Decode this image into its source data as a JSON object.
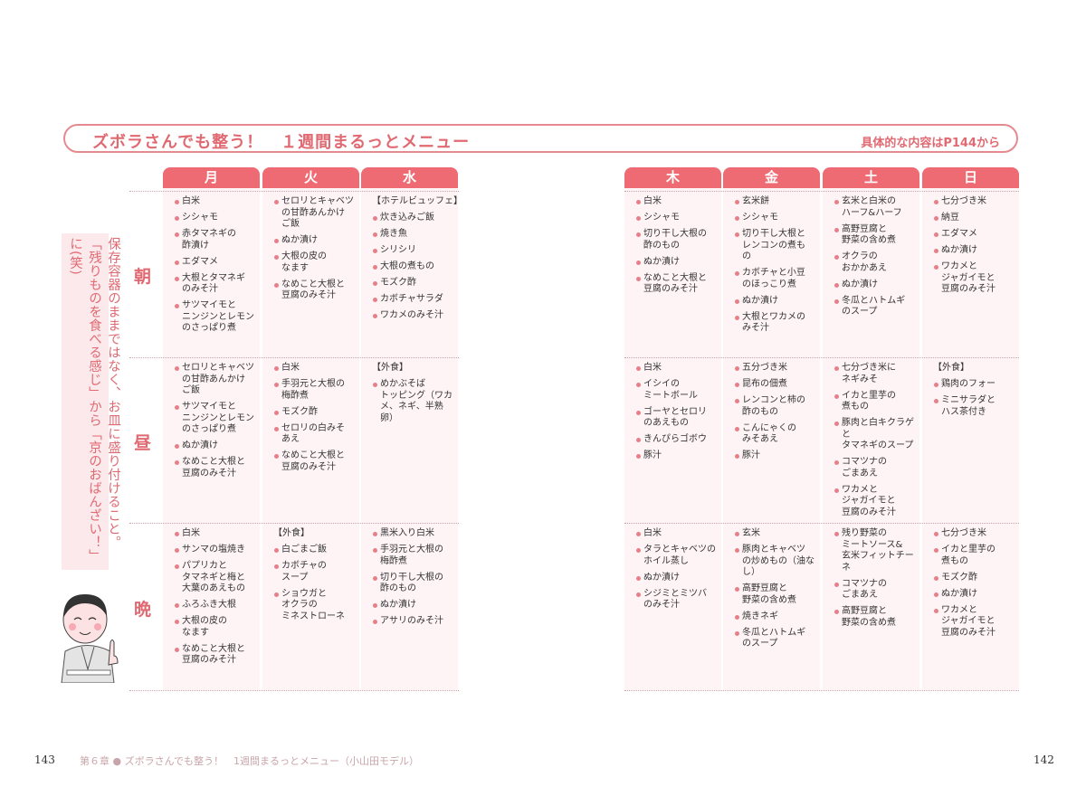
{
  "header": {
    "title": "ズボラさんでも整う！　１週間まるっとメニュー",
    "subtitle": "具体的な内容はP144から"
  },
  "days": [
    "月",
    "火",
    "水",
    "木",
    "金",
    "土",
    "日"
  ],
  "meals": [
    "朝",
    "昼",
    "晩"
  ],
  "side_note": "保存容器のままではなく、お皿に盛り付けること。「残りものを食べる感じ」から「京のおばんざい！」に(笑)",
  "colors": {
    "accent": "#ee6b73",
    "text_accent": "#e06a72",
    "cell_bg": "#fef4f6"
  },
  "menu": [
    [
      {
        "items": [
          "白米",
          "シシャモ",
          "赤タマネギの\n酢漬け",
          "エダマメ",
          "大根とタマネギ\nのみそ汁",
          "サツマイモと\nニンジンとレモン\nのさっぱり煮"
        ]
      },
      {
        "items": [
          "セロリとキャベツ\nの甘酢あんかけ\nご飯",
          "ぬか漬け",
          "大根の皮の\nなます",
          "なめこと大根と\n豆腐のみそ汁"
        ]
      },
      {
        "note": "【ホテルビュッフェ】",
        "items": [
          "炊き込みご飯",
          "焼き魚",
          "シリシリ",
          "大根の煮もの",
          "モズク酢",
          "カボチャサラダ",
          "ワカメのみそ汁"
        ]
      },
      {
        "items": [
          "白米",
          "シシャモ",
          "切り干し大根の\n酢のもの",
          "ぬか漬け",
          "なめこと大根と\n豆腐のみそ汁"
        ]
      },
      {
        "items": [
          "玄米餅",
          "シシャモ",
          "切り干し大根と\nレンコンの煮も\nの",
          "カボチャと小豆\nのほっこり煮",
          "ぬか漬け",
          "大根とワカメの\nみそ汁"
        ]
      },
      {
        "items": [
          "玄米と白米の\nハーフ&ハーフ",
          "高野豆腐と\n野菜の含め煮",
          "オクラの\nおかかあえ",
          "ぬか漬け",
          "冬瓜とハトムギ\nのスープ"
        ]
      },
      {
        "items": [
          "七分づき米",
          "納豆",
          "エダマメ",
          "ぬか漬け",
          "ワカメと\nジャガイモと\n豆腐のみそ汁"
        ]
      }
    ],
    [
      {
        "items": [
          "セロリとキャベツ\nの甘酢あんかけ\nご飯",
          "サツマイモと\nニンジンとレモン\nのさっぱり煮",
          "ぬか漬け",
          "なめこと大根と\n豆腐のみそ汁"
        ]
      },
      {
        "items": [
          "白米",
          "手羽元と大根の\n梅酢煮",
          "モズク酢",
          "セロリの白みそ\nあえ",
          "なめこと大根と\n豆腐のみそ汁"
        ]
      },
      {
        "note": "【外食】",
        "items": [
          "めかぶそば\nトッピング（ワカ\nメ、ネギ、半熟\n卵）"
        ]
      },
      {
        "items": [
          "白米",
          "イシイの\nミートボール",
          "ゴーヤとセロリ\nのあえもの",
          "きんぴらゴボウ",
          "豚汁"
        ]
      },
      {
        "items": [
          "五分づき米",
          "昆布の佃煮",
          "レンコンと柿の\n酢のもの",
          "こんにゃくの\nみそあえ",
          "豚汁"
        ]
      },
      {
        "items": [
          "七分づき米に\nネギみそ",
          "イカと里芋の\n煮もの",
          "豚肉と白キクラゲと\nタマネギのスープ",
          "コマツナの\nごまあえ",
          "ワカメと\nジャガイモと\n豆腐のみそ汁"
        ]
      },
      {
        "note": "【外食】",
        "items": [
          "鶏肉のフォー",
          "ミニサラダと\nハス茶付き"
        ]
      }
    ],
    [
      {
        "items": [
          "白米",
          "サンマの塩焼き",
          "パプリカと\nタマネギと梅と\n大葉のあえもの",
          "ふろふき大根",
          "大根の皮の\nなます",
          "なめこと大根と\n豆腐のみそ汁"
        ]
      },
      {
        "note": "【外食】",
        "items": [
          "白ごまご飯",
          "カボチャの\nスープ",
          "ショウガと\nオクラの\nミネストローネ"
        ]
      },
      {
        "items": [
          "黒米入り白米",
          "手羽元と大根の\n梅酢煮",
          "切り干し大根の\n酢のもの",
          "ぬか漬け",
          "アサリのみそ汁"
        ]
      },
      {
        "items": [
          "白米",
          "タラとキャベツの\nホイル蒸し",
          "ぬか漬け",
          "シジミとミツバ\nのみそ汁"
        ]
      },
      {
        "items": [
          "玄米",
          "豚肉とキャベツ\nの炒めもの（油な\nし）",
          "高野豆腐と\n野菜の含め煮",
          "焼きネギ",
          "冬瓜とハトムギ\nのスープ"
        ]
      },
      {
        "items": [
          "残り野菜の\nミートソース&\n玄米フィットチー\nネ",
          "コマツナの\nごまあえ",
          "高野豆腐と\n野菜の含め煮"
        ]
      },
      {
        "items": [
          "七分づき米",
          "イカと里芋の\n煮もの",
          "モズク酢",
          "ぬか漬け",
          "ワカメと\nジャガイモと\n豆腐のみそ汁"
        ]
      }
    ]
  ],
  "footer": {
    "left_page": "143",
    "chapter": "第６章 ● ズボラさんでも整う！　1週間まるっとメニュー（小山田モデル）",
    "right_page": "142"
  }
}
